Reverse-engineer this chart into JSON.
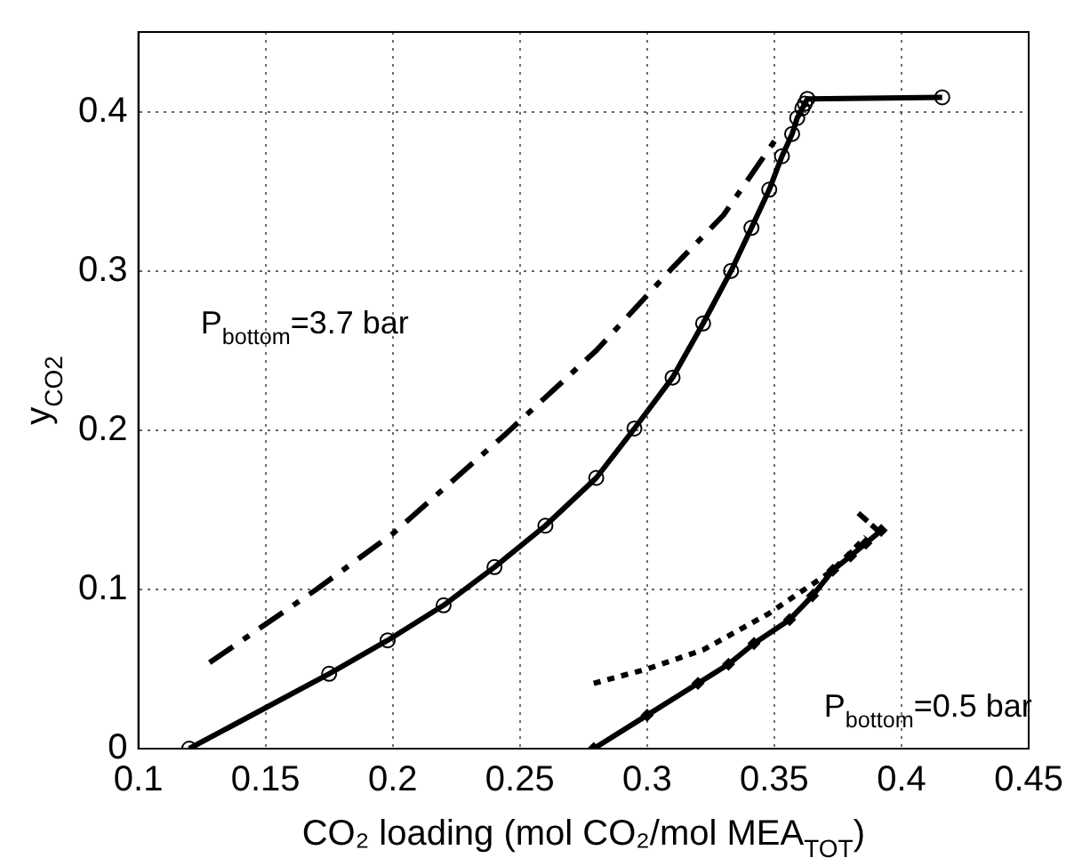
{
  "chart_data": {
    "type": "line",
    "xlabel": "CO₂ loading (mol CO₂/mol MEA$_{TOT}$)",
    "ylabel": "y$_{CO2}$",
    "xlim": [
      0.1,
      0.45
    ],
    "xticks": [
      0.1,
      0.15,
      0.2,
      0.25,
      0.3,
      0.35,
      0.4,
      0.45
    ],
    "ylim": [
      0,
      0.45
    ],
    "yticks": [
      0,
      0.1,
      0.2,
      0.3,
      0.4
    ],
    "grid": true,
    "series": [
      {
        "color": "#000000",
        "marker": "circle",
        "line_style": "solid",
        "x": [
          0.12,
          0.175,
          0.198,
          0.22,
          0.24,
          0.26,
          0.28,
          0.295,
          0.31,
          0.322,
          0.333,
          0.341,
          0.348,
          0.353,
          0.357,
          0.359,
          0.361,
          0.362,
          0.363,
          0.416
        ],
        "values": [
          0,
          0.047,
          0.068,
          0.09,
          0.114,
          0.14,
          0.17,
          0.201,
          0.233,
          0.267,
          0.3,
          0.327,
          0.351,
          0.372,
          0.386,
          0.396,
          0.402,
          0.405,
          0.408,
          0.409
        ]
      },
      {
        "color": "#000000",
        "marker": "none",
        "line_style": "dashed",
        "x": [
          0.128,
          0.17,
          0.2,
          0.244,
          0.28,
          0.31,
          0.33,
          0.352
        ],
        "values": [
          0.054,
          0.1,
          0.135,
          0.197,
          0.25,
          0.302,
          0.335,
          0.386
        ]
      },
      {
        "color": "#000000",
        "marker": "diamond",
        "line_style": "solid",
        "x": [
          0.279,
          0.3,
          0.32,
          0.332,
          0.342,
          0.356,
          0.365,
          0.373,
          0.38,
          0.386,
          0.392
        ],
        "values": [
          0,
          0.021,
          0.041,
          0.053,
          0.066,
          0.081,
          0.096,
          0.112,
          0.121,
          0.129,
          0.137
        ]
      },
      {
        "color": "#000000",
        "marker": "none",
        "line_style": "dotted",
        "x": [
          0.279,
          0.3,
          0.322,
          0.348,
          0.373,
          0.386
        ],
        "values": [
          0.041,
          0.05,
          0.062,
          0.085,
          0.112,
          0.133
        ]
      },
      {
        "color": "#000000",
        "marker": "none",
        "line_style": "dashed",
        "x": [
          0.383,
          0.392
        ],
        "values": [
          0.148,
          0.135
        ]
      }
    ],
    "annotations": [
      "P$_{bottom}$=3.7 bar",
      "P$_{bottom}$=0.5 bar"
    ]
  }
}
